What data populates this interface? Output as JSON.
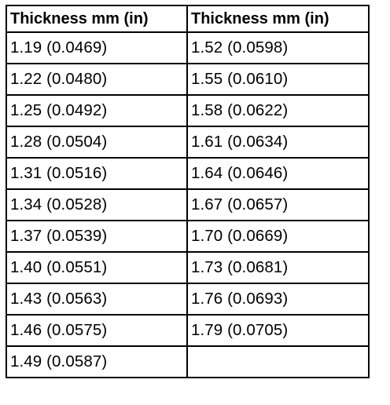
{
  "table": {
    "headers": [
      "Thickness mm (in)",
      "Thickness mm (in)"
    ],
    "rows": [
      [
        "1.19 (0.0469)",
        "1.52 (0.0598)"
      ],
      [
        "1.22 (0.0480)",
        "1.55 (0.0610)"
      ],
      [
        "1.25 (0.0492)",
        "1.58 (0.0622)"
      ],
      [
        "1.28 (0.0504)",
        "1.61 (0.0634)"
      ],
      [
        "1.31 (0.0516)",
        "1.64 (0.0646)"
      ],
      [
        "1.34 (0.0528)",
        "1.67 (0.0657)"
      ],
      [
        "1.37 (0.0539)",
        "1.70 (0.0669)"
      ],
      [
        "1.40 (0.0551)",
        "1.73 (0.0681)"
      ],
      [
        "1.43 (0.0563)",
        "1.76 (0.0693)"
      ],
      [
        "1.46 (0.0575)",
        "1.79 (0.0705)"
      ],
      [
        "1.49 (0.0587)",
        ""
      ]
    ]
  }
}
